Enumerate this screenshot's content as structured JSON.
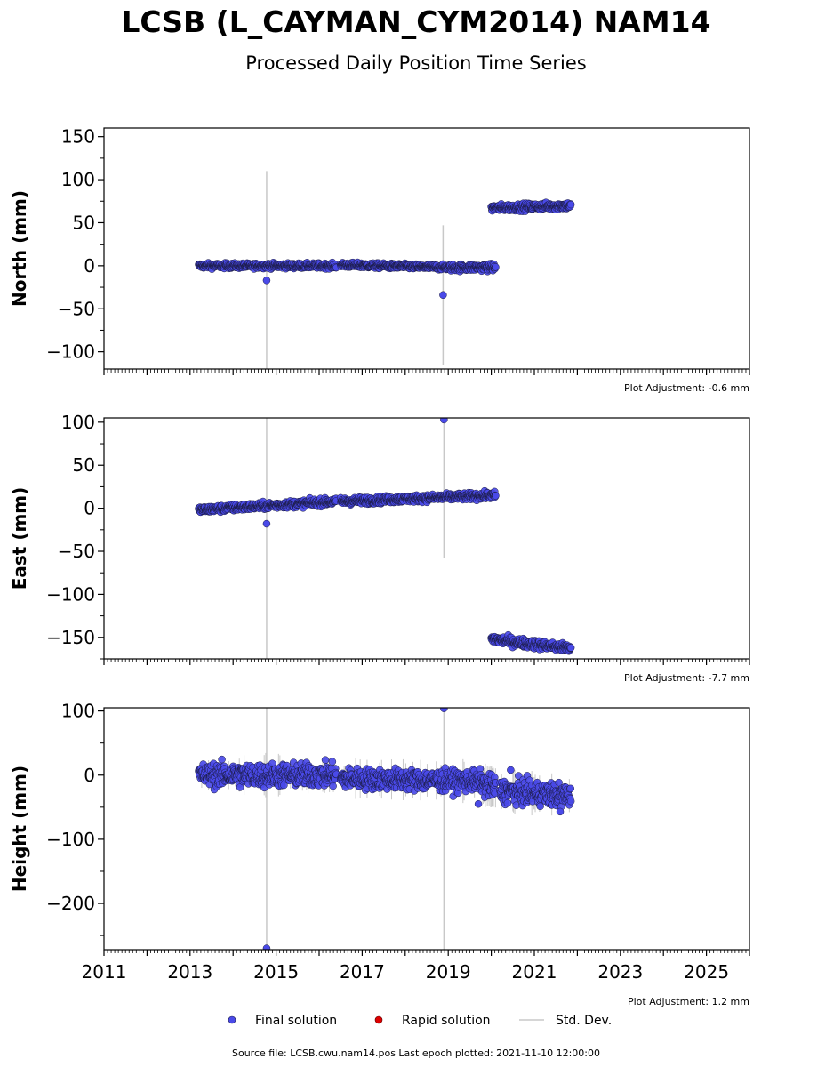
{
  "title": "LCSB (L_CAYMAN_CYM2014) NAM14",
  "subtitle": "Processed Daily Position Time Series",
  "source": "Source file: LCSB.cwu.nam14.pos  Last epoch plotted: 2021-11-10 12:00:00",
  "colors": {
    "final": "#4a4ae8",
    "rapid": "#dd0000",
    "stddev": "#c8c8c8",
    "marker_edge": "#1a1a40"
  },
  "legend": [
    {
      "key": "final",
      "label": "Final solution"
    },
    {
      "key": "rapid",
      "label": "Rapid solution"
    },
    {
      "key": "stddev",
      "label": "Std. Dev."
    }
  ],
  "chart_data": [
    {
      "type": "scatter",
      "ylabel": "North (mm)",
      "xlim": [
        2011,
        2026
      ],
      "ylim": [
        -120,
        160
      ],
      "yticks": [
        -100,
        -50,
        0,
        50,
        100,
        150
      ],
      "adjustment": "Plot Adjustment: -0.6 mm",
      "segments": [
        {
          "x": [
            2013.2,
            2016.4
          ],
          "y": [
            0,
            0
          ],
          "noise": 1.5
        },
        {
          "x": [
            2016.5,
            2019.0
          ],
          "y": [
            1,
            -2
          ],
          "noise": 1.5
        },
        {
          "x": [
            2019.0,
            2020.1
          ],
          "y": [
            -2,
            -2
          ],
          "noise": 2
        },
        {
          "x": [
            2020.0,
            2021.85
          ],
          "y": [
            67,
            70
          ],
          "noise": 2
        }
      ],
      "outliers": [
        {
          "x": 2014.78,
          "y": -17
        },
        {
          "x": 2018.88,
          "y": -34
        }
      ],
      "errorbars": [
        {
          "x": 2014.78,
          "y0": -120,
          "y1": 110
        },
        {
          "x": 2018.88,
          "y0": -115,
          "y1": 47
        }
      ]
    },
    {
      "type": "scatter",
      "ylabel": "East (mm)",
      "xlim": [
        2011,
        2026
      ],
      "ylim": [
        -175,
        105
      ],
      "yticks": [
        -150,
        -100,
        -50,
        0,
        50,
        100
      ],
      "adjustment": "Plot Adjustment: -7.7 mm",
      "segments": [
        {
          "x": [
            2013.2,
            2016.4
          ],
          "y": [
            -2,
            8
          ],
          "noise": 2
        },
        {
          "x": [
            2016.5,
            2020.1
          ],
          "y": [
            8,
            15
          ],
          "noise": 2
        },
        {
          "x": [
            2020.0,
            2021.85
          ],
          "y": [
            -152,
            -163
          ],
          "noise": 2.5
        }
      ],
      "outliers": [
        {
          "x": 2014.78,
          "y": -18
        },
        {
          "x": 2018.9,
          "y": 103
        }
      ],
      "errorbars": [
        {
          "x": 2014.78,
          "y0": -175,
          "y1": 105
        },
        {
          "x": 2018.9,
          "y0": -58,
          "y1": 105
        }
      ]
    },
    {
      "type": "scatter",
      "ylabel": "Height (mm)",
      "xlim": [
        2011,
        2026
      ],
      "ylim": [
        -272,
        105
      ],
      "yticks": [
        -200,
        -100,
        0,
        100
      ],
      "xticks": [
        2011,
        2013,
        2015,
        2017,
        2019,
        2021,
        2023,
        2025
      ],
      "adjustment": "Plot Adjustment: 1.2 mm",
      "segments": [
        {
          "x": [
            2013.2,
            2016.4
          ],
          "y": [
            0,
            0
          ],
          "noise": 9
        },
        {
          "x": [
            2016.5,
            2019.8
          ],
          "y": [
            -5,
            -10
          ],
          "noise": 8
        },
        {
          "x": [
            2019.8,
            2020.1
          ],
          "y": [
            -15,
            -20
          ],
          "noise": 9
        },
        {
          "x": [
            2020.2,
            2021.85
          ],
          "y": [
            -25,
            -32
          ],
          "noise": 9
        }
      ],
      "outliers": [
        {
          "x": 2014.78,
          "y": -270
        },
        {
          "x": 2018.9,
          "y": 104
        },
        {
          "x": 2019.7,
          "y": -45
        },
        {
          "x": 2020.45,
          "y": 8
        },
        {
          "x": 2021.6,
          "y": -57
        }
      ],
      "errorbars": [
        {
          "x": 2014.78,
          "y0": -272,
          "y1": 105
        },
        {
          "x": 2018.9,
          "y0": -272,
          "y1": 105
        }
      ]
    }
  ]
}
